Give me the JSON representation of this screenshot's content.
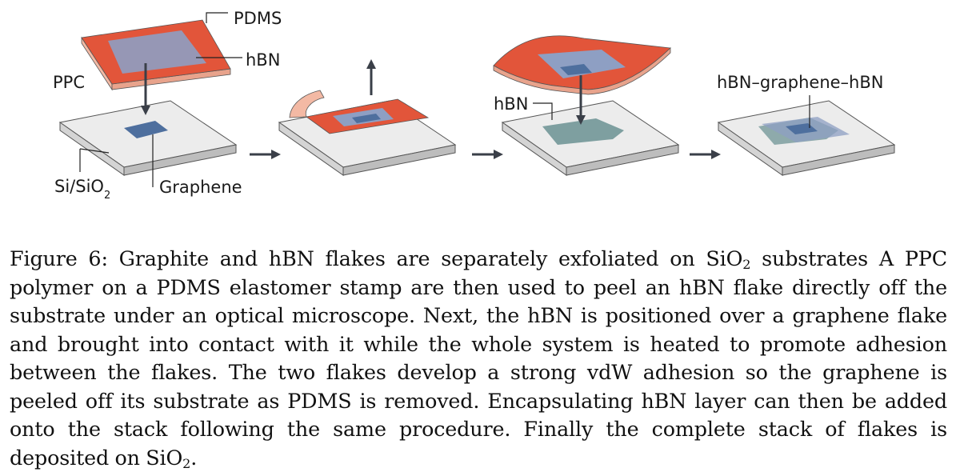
{
  "figure": {
    "labels": {
      "pdms": "PDMS",
      "hbn_top": "hBN",
      "ppc": "PPC",
      "si_sio": "Si/SiO",
      "si_sio_sub": "2",
      "graphene": "Graphene",
      "hbn_step3": "hBN",
      "stack": "hBN–graphene–hBN"
    },
    "colors": {
      "ppc_red": "#e2553a",
      "ppc_pink": "#f3b9a4",
      "hbn_flake": "#8e9fc3",
      "graphene": "#4e6f9e",
      "substrate_top": "#ececec",
      "substrate_side": "#c9c9c9",
      "graphene_hbn_stack": "#7e9fa0",
      "arrow": "#3a3f48"
    }
  },
  "caption": {
    "label": "Figure 6:",
    "part1": "Graphite and hBN flakes are separately exfoliated on SiO",
    "sub1": "2",
    "part2": " substrates A PPC polymer on a PDMS elastomer stamp are then used to peel an hBN flake directly off the substrate under an optical microscope. Next, the hBN is positioned over a graphene flake and brought into contact with it while the whole system is heated to promote adhesion between the flakes. The two flakes develop a strong vdW adhesion so the graphene is peeled off its substrate as PDMS is removed. Encapsulating hBN layer can then be added onto the stack following the same procedure. Finally the complete stack of flakes is deposited on SiO",
    "sub2": "2",
    "part3": "."
  }
}
